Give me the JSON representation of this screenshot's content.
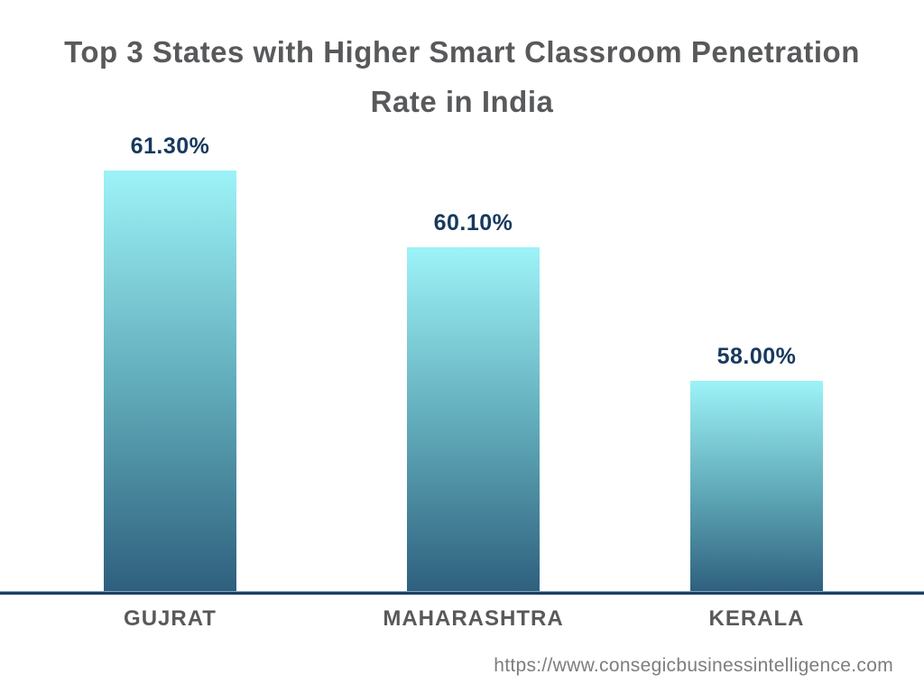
{
  "title_lines": [
    "Top 3 States with Higher Smart Classroom Penetration",
    "Rate in India"
  ],
  "footer": {
    "url": "https://www.consegicbusinessintelligence.com"
  },
  "colors": {
    "title": "#58595b",
    "value_label": "#17395d",
    "category_label": "#595959",
    "axis_line": "#1d3f61",
    "url_text": "#7d7d7d",
    "bar_gradient_top": "#9df3f7",
    "bar_gradient_mid": "#60aab9",
    "bar_gradient_bottom": "#2e5f7d",
    "background": "#ffffff"
  },
  "chart_data": {
    "type": "bar",
    "title": "Top 3 States with Higher Smart Classroom Penetration Rate in India",
    "categories": [
      "GUJRAT",
      "MAHARASHTRA",
      "KERALA"
    ],
    "values": [
      61.3,
      60.1,
      58.0
    ],
    "value_labels": [
      "61.30%",
      "60.10%",
      "58.00%"
    ],
    "xlabel": "",
    "ylabel": "",
    "ylim": [
      54.66,
      64.0
    ],
    "grid": false,
    "legend": false,
    "y_axis_visible": false,
    "value_labels_position": "above-bar",
    "bar_gradient": [
      "#9df3f7",
      "#60aab9",
      "#2e5f7d"
    ]
  }
}
